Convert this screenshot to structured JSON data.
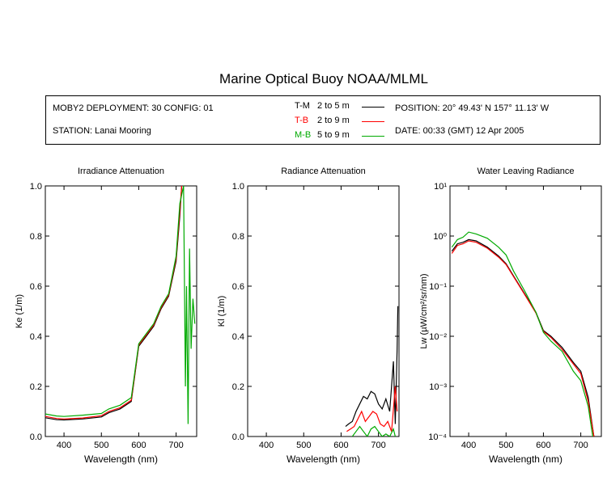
{
  "title": "Marine Optical Buoy NOAA/MLML",
  "info": {
    "deployment": "MOBY2 DEPLOYMENT: 30 CONFIG: 01",
    "station": "STATION: Lanai Mooring",
    "position": "POSITION: 20° 49.43' N   157° 11.13' W",
    "date": "DATE: 00:33 (GMT) 12 Apr 2005"
  },
  "legend": [
    {
      "code": "T-M",
      "range": "2 to 5  m",
      "color": "#000000"
    },
    {
      "code": "T-B",
      "range": "2 to 9  m",
      "color": "#ff0000"
    },
    {
      "code": "M-B",
      "range": "5 to 9  m",
      "color": "#00aa00"
    }
  ],
  "chart_data": [
    {
      "type": "line",
      "title": "Irradiance Attenuation",
      "xlabel": "Wavelength (nm)",
      "ylabel": "Ke  (1/m)",
      "xlim": [
        350,
        755
      ],
      "ylim": [
        0,
        1
      ],
      "xticks": [
        400,
        500,
        600,
        700
      ],
      "yticks": [
        0.0,
        0.2,
        0.4,
        0.6,
        0.8,
        1.0
      ],
      "ytick_labels": [
        "0.0",
        "0.2",
        "0.4",
        "0.6",
        "0.8",
        "1.0"
      ],
      "series": [
        {
          "color": "#000000",
          "x": [
            350,
            380,
            400,
            450,
            500,
            520,
            550,
            580,
            600,
            620,
            640,
            660,
            680,
            700,
            710,
            715
          ],
          "y": [
            0.075,
            0.067,
            0.066,
            0.07,
            0.078,
            0.095,
            0.11,
            0.14,
            0.36,
            0.4,
            0.44,
            0.51,
            0.56,
            0.7,
            0.88,
            1.0
          ]
        },
        {
          "color": "#ff0000",
          "x": [
            350,
            380,
            400,
            450,
            500,
            520,
            550,
            580,
            600,
            620,
            640,
            660,
            680,
            700,
            710,
            715
          ],
          "y": [
            0.08,
            0.072,
            0.07,
            0.074,
            0.083,
            0.1,
            0.115,
            0.145,
            0.365,
            0.405,
            0.445,
            0.515,
            0.565,
            0.71,
            0.9,
            1.0
          ]
        },
        {
          "color": "#00aa00",
          "x": [
            350,
            380,
            400,
            450,
            500,
            520,
            550,
            580,
            600,
            620,
            640,
            660,
            680,
            700,
            710,
            720,
            725,
            728,
            732,
            736,
            740,
            745,
            750
          ],
          "y": [
            0.09,
            0.082,
            0.08,
            0.085,
            0.092,
            0.11,
            0.125,
            0.155,
            0.37,
            0.41,
            0.45,
            0.52,
            0.57,
            0.72,
            0.93,
            1.0,
            0.2,
            0.6,
            0.05,
            0.75,
            0.35,
            0.55,
            0.45
          ]
        }
      ]
    },
    {
      "type": "line",
      "title": "Radiance Attenuation",
      "xlabel": "Wavelength (nm)",
      "ylabel": "Kl  (1/m)",
      "xlim": [
        350,
        755
      ],
      "ylim": [
        0,
        1
      ],
      "xticks": [
        400,
        500,
        600,
        700
      ],
      "yticks": [
        0.0,
        0.2,
        0.4,
        0.6,
        0.8,
        1.0
      ],
      "ytick_labels": [
        "0.0",
        "0.2",
        "0.4",
        "0.6",
        "0.8",
        "1.0"
      ],
      "series": [
        {
          "color": "#000000",
          "x": [
            612,
            620,
            630,
            640,
            650,
            660,
            670,
            680,
            690,
            700,
            710,
            720,
            730,
            740,
            745,
            750,
            752
          ],
          "y": [
            0.04,
            0.05,
            0.06,
            0.1,
            0.13,
            0.16,
            0.15,
            0.18,
            0.17,
            0.13,
            0.11,
            0.15,
            0.1,
            0.3,
            0.05,
            0.35,
            0.52
          ]
        },
        {
          "color": "#ff0000",
          "x": [
            615,
            625,
            635,
            645,
            655,
            665,
            675,
            685,
            695,
            705,
            715,
            725,
            735,
            745,
            750
          ],
          "y": [
            0.02,
            0.03,
            0.04,
            0.07,
            0.1,
            0.06,
            0.08,
            0.1,
            0.09,
            0.05,
            0.04,
            0.06,
            0.02,
            0.2,
            0.1
          ]
        },
        {
          "color": "#00aa00",
          "x": [
            630,
            640,
            650,
            660,
            670,
            680,
            690,
            700,
            710,
            720,
            730,
            740,
            745
          ],
          "y": [
            0.0,
            0.02,
            0.04,
            0.02,
            0.0,
            0.03,
            0.04,
            0.02,
            0.0,
            0.01,
            0.0,
            0.03,
            0.0
          ]
        }
      ]
    },
    {
      "type": "line",
      "title": "Water Leaving Radiance",
      "xlabel": "Wavelength (nm)",
      "ylabel": "Lw  (µW/cm²/sr/nm)",
      "scale_y": "log",
      "xlim": [
        350,
        755
      ],
      "ylim": [
        0.0001,
        10
      ],
      "xticks": [
        400,
        500,
        600,
        700
      ],
      "yticks": [
        0.0001,
        0.001,
        0.01,
        0.1,
        1,
        10
      ],
      "ytick_labels": [
        "10⁻⁴",
        "10⁻³",
        "10⁻²",
        "10⁻¹",
        "10⁰",
        "10¹"
      ],
      "series": [
        {
          "color": "#000000",
          "x": [
            355,
            370,
            385,
            400,
            420,
            450,
            480,
            500,
            520,
            550,
            580,
            600,
            620,
            650,
            680,
            700,
            720,
            735
          ],
          "y": [
            0.5,
            0.7,
            0.75,
            0.85,
            0.8,
            0.6,
            0.4,
            0.28,
            0.16,
            0.07,
            0.03,
            0.013,
            0.01,
            0.006,
            0.003,
            0.002,
            0.0006,
            0.0001
          ]
        },
        {
          "color": "#ff0000",
          "x": [
            355,
            370,
            385,
            400,
            420,
            450,
            480,
            500,
            520,
            550,
            580,
            600,
            620,
            650,
            680,
            700,
            720,
            735
          ],
          "y": [
            0.45,
            0.65,
            0.7,
            0.8,
            0.75,
            0.57,
            0.38,
            0.27,
            0.155,
            0.068,
            0.029,
            0.0125,
            0.0095,
            0.0055,
            0.0028,
            0.0018,
            0.0005,
            0.0001
          ]
        },
        {
          "color": "#00aa00",
          "x": [
            355,
            370,
            385,
            400,
            420,
            450,
            480,
            500,
            520,
            550,
            580,
            600,
            620,
            650,
            680,
            700,
            720,
            732
          ],
          "y": [
            0.6,
            0.85,
            0.95,
            1.2,
            1.1,
            0.9,
            0.6,
            0.42,
            0.2,
            0.08,
            0.03,
            0.012,
            0.008,
            0.005,
            0.002,
            0.0013,
            0.0004,
            0.0001
          ]
        }
      ]
    }
  ]
}
